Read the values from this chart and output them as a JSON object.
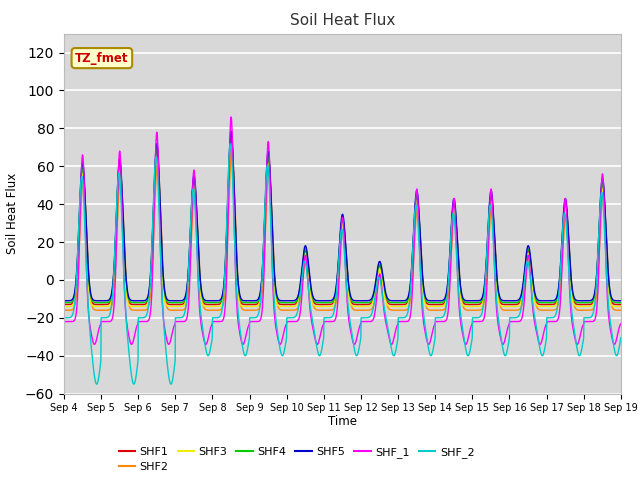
{
  "title": "Soil Heat Flux",
  "ylabel": "Soil Heat Flux",
  "xlabel": "Time",
  "ylim": [
    -60,
    130
  ],
  "yticks": [
    -60,
    -40,
    -20,
    0,
    20,
    40,
    60,
    80,
    100,
    120
  ],
  "series_colors": {
    "SHF1": "#dd0000",
    "SHF2": "#ff8800",
    "SHF3": "#eeee00",
    "SHF4": "#00cc00",
    "SHF5": "#0000cc",
    "SHF_1": "#ff00ff",
    "SHF_2": "#00cccc"
  },
  "annotation_text": "TZ_fmet",
  "annotation_color": "#cc0000",
  "annotation_bg": "#ffffcc",
  "annotation_border": "#aa8800",
  "n_days": 15,
  "start_day": 4,
  "ppd": 144,
  "ax_facecolor": "#d8d8d8",
  "fig_facecolor": "#ffffff",
  "grid_color": "#ffffff",
  "peak_day_amps": [
    88,
    90,
    100,
    80,
    108,
    95,
    35,
    55,
    25,
    70,
    65,
    70,
    35,
    65,
    78
  ],
  "legend_ncol_row1": 6,
  "legend_fontsize": 8
}
